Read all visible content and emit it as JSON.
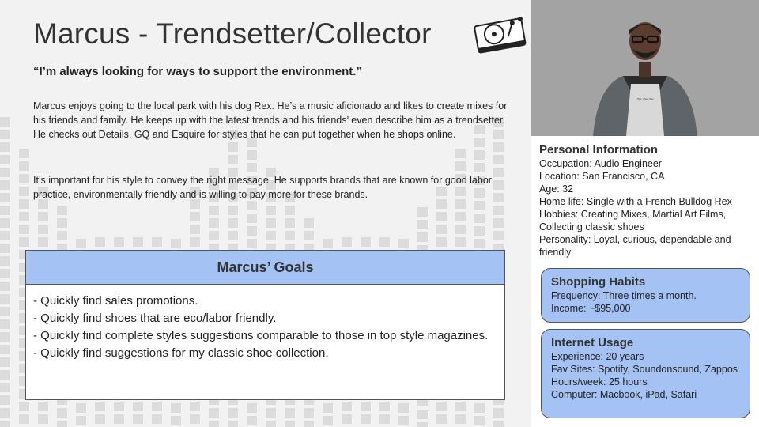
{
  "persona": {
    "title": "Marcus - Trendsetter/Collector",
    "quote": "“I’m always looking for ways to support the environment.”",
    "bio_paragraphs": [
      "Marcus enjoys going to the local park with his dog Rex. He’s a music aficionado and likes to create mixes for his friends and family. He keeps up with the latest trends and his friends’ even describe him as a trendsetter.  He checks out Details, GQ and Esquire for styles that he can put together when he shops online.",
      "It’s important for his style to convey the right message. He supports brands that are known for good labor practice, environmentally friendly and is willing to pay more for these brands."
    ]
  },
  "goals": {
    "title": "Marcus’ Goals",
    "items": [
      "- Quickly find sales promotions.",
      "- Quickly find shoes that are eco/labor friendly.",
      "- Quickly find complete styles suggestions comparable to those in top style magazines.",
      "- Quickly find suggestions for my classic shoe collection."
    ]
  },
  "personal_info": {
    "title": "Personal Information",
    "lines": [
      "Occupation: Audio Engineer",
      "Location: San Francisco, CA",
      "Age: 32",
      "Home life: Single with a French Bulldog Rex",
      "Hobbies: Creating Mixes, Martial Art Films, Collecting classic shoes",
      "Personality: Loyal, curious, dependable and friendly"
    ]
  },
  "shopping_habits": {
    "title": "Shopping Habits",
    "lines": [
      "Frequency: Three times a month.",
      "Income: ~$95,000"
    ]
  },
  "internet_usage": {
    "title": "Internet Usage",
    "lines": [
      "Experience: 20 years",
      "Fav Sites: Spotify, Soundonsound, Zappos",
      "Hours/week: 25 hours",
      "Computer: Macbook, iPad, Safari"
    ]
  },
  "icons": {
    "turntable": "turntable-icon",
    "photo": "persona-photo"
  },
  "colors": {
    "accent": "#a4c2f4",
    "equalizer": "#dcdcdc",
    "text": "#222222"
  }
}
